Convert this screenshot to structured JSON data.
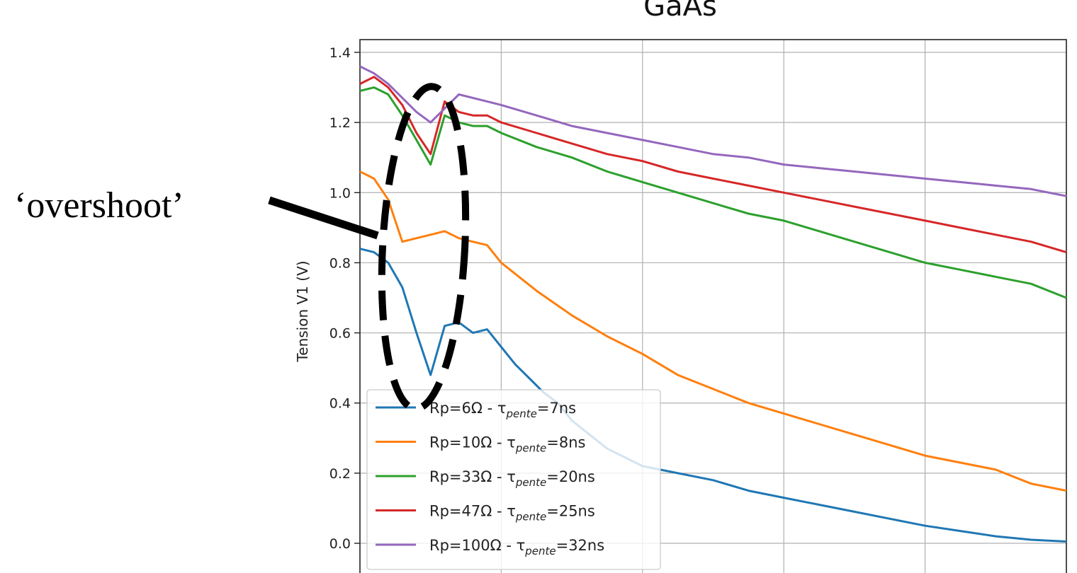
{
  "chart_data": {
    "type": "line",
    "title": "GaAs",
    "xlabel": "",
    "ylabel": "Tension V1 (V)",
    "ylim": [
      -0.08,
      1.43
    ],
    "yticks": [
      0.0,
      0.2,
      0.4,
      0.6,
      0.8,
      1.0,
      1.2,
      1.4
    ],
    "ytick_labels": [
      "0.0",
      "0.2",
      "0.4",
      "0.6",
      "0.8",
      "1.0",
      "1.2",
      "1.4"
    ],
    "xlim": [
      0,
      100
    ],
    "grid": true,
    "legend_position": "bottom-left",
    "annotation": "‘overshoot’",
    "series": [
      {
        "name_main": "Rp=6Ω - τ",
        "name_sub": "pente",
        "name_tail": "=7ns",
        "color": "#1f77b4",
        "x": [
          0,
          2,
          4,
          6,
          8,
          10,
          12,
          14,
          16,
          18,
          20,
          22,
          24,
          26,
          28,
          30,
          35,
          40,
          45,
          50,
          55,
          60,
          65,
          70,
          75,
          80,
          85,
          90,
          95,
          100
        ],
        "values": [
          0.84,
          0.83,
          0.8,
          0.73,
          0.6,
          0.48,
          0.62,
          0.63,
          0.6,
          0.61,
          0.56,
          0.51,
          0.47,
          0.43,
          0.4,
          0.35,
          0.27,
          0.22,
          0.2,
          0.18,
          0.15,
          0.13,
          0.11,
          0.09,
          0.07,
          0.05,
          0.035,
          0.02,
          0.01,
          0.005
        ]
      },
      {
        "name_main": "Rp=10Ω - τ",
        "name_sub": "pente",
        "name_tail": "=8ns",
        "color": "#ff7f0e",
        "x": [
          0,
          2,
          4,
          6,
          8,
          10,
          12,
          14,
          16,
          18,
          20,
          25,
          30,
          35,
          40,
          45,
          50,
          55,
          60,
          65,
          70,
          75,
          80,
          85,
          90,
          95,
          100
        ],
        "values": [
          1.06,
          1.04,
          0.98,
          0.86,
          0.87,
          0.88,
          0.89,
          0.87,
          0.86,
          0.85,
          0.8,
          0.72,
          0.65,
          0.59,
          0.54,
          0.48,
          0.44,
          0.4,
          0.37,
          0.34,
          0.31,
          0.28,
          0.25,
          0.23,
          0.21,
          0.17,
          0.15
        ]
      },
      {
        "name_main": "Rp=33Ω - τ",
        "name_sub": "pente",
        "name_tail": "=20ns",
        "color": "#2ca02c",
        "x": [
          0,
          2,
          4,
          6,
          8,
          10,
          12,
          14,
          16,
          18,
          20,
          25,
          30,
          35,
          40,
          45,
          50,
          55,
          60,
          65,
          70,
          75,
          80,
          85,
          90,
          95,
          100
        ],
        "values": [
          1.29,
          1.3,
          1.28,
          1.22,
          1.15,
          1.08,
          1.22,
          1.2,
          1.19,
          1.19,
          1.17,
          1.13,
          1.1,
          1.06,
          1.03,
          1.0,
          0.97,
          0.94,
          0.92,
          0.89,
          0.86,
          0.83,
          0.8,
          0.78,
          0.76,
          0.74,
          0.7
        ]
      },
      {
        "name_main": "Rp=47Ω - τ",
        "name_sub": "pente",
        "name_tail": "=25ns",
        "color": "#d62728",
        "x": [
          0,
          2,
          4,
          6,
          8,
          10,
          12,
          14,
          16,
          18,
          20,
          25,
          30,
          35,
          40,
          45,
          50,
          55,
          60,
          65,
          70,
          75,
          80,
          85,
          90,
          95,
          100
        ],
        "values": [
          1.31,
          1.33,
          1.3,
          1.25,
          1.17,
          1.11,
          1.26,
          1.23,
          1.22,
          1.22,
          1.2,
          1.17,
          1.14,
          1.11,
          1.09,
          1.06,
          1.04,
          1.02,
          1.0,
          0.98,
          0.96,
          0.94,
          0.92,
          0.9,
          0.88,
          0.86,
          0.83
        ]
      },
      {
        "name_main": "Rp=100Ω - τ",
        "name_sub": "pente",
        "name_tail": "=32ns",
        "color": "#9467bd",
        "x": [
          0,
          2,
          4,
          6,
          8,
          10,
          12,
          14,
          16,
          18,
          20,
          25,
          30,
          35,
          40,
          45,
          50,
          55,
          60,
          65,
          70,
          75,
          80,
          85,
          90,
          95,
          100
        ],
        "values": [
          1.36,
          1.34,
          1.31,
          1.27,
          1.23,
          1.2,
          1.24,
          1.28,
          1.27,
          1.26,
          1.25,
          1.22,
          1.19,
          1.17,
          1.15,
          1.13,
          1.11,
          1.1,
          1.08,
          1.07,
          1.06,
          1.05,
          1.04,
          1.03,
          1.02,
          1.01,
          0.99
        ]
      }
    ]
  }
}
